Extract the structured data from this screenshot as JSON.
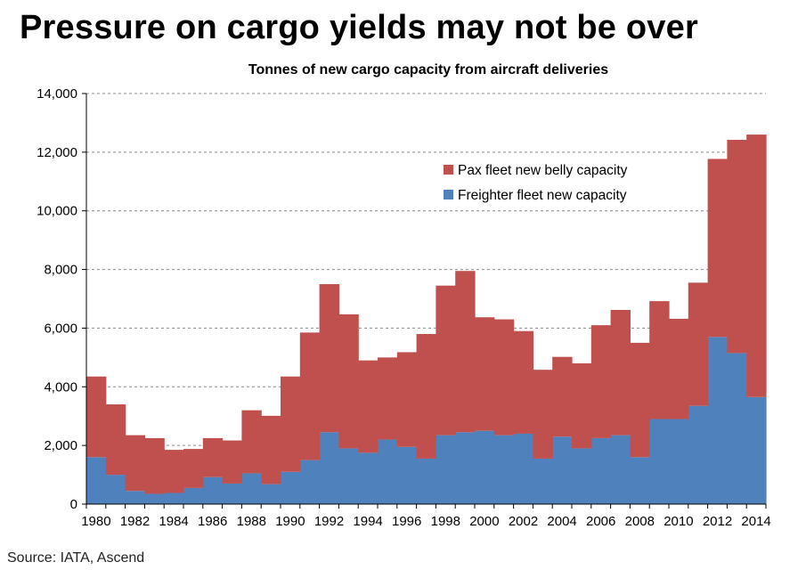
{
  "header": {
    "title": "Pressure on cargo yields may not be over"
  },
  "footer": {
    "source": "Source: IATA, Ascend"
  },
  "chart_data": {
    "type": "area",
    "stacked": true,
    "title": "Tonnes of new cargo capacity from aircraft deliveries",
    "xlabel": "",
    "ylabel": "",
    "ylim": [
      0,
      14000
    ],
    "yticks": [
      0,
      2000,
      4000,
      6000,
      8000,
      10000,
      12000,
      14000
    ],
    "ytick_labels": [
      "0",
      "2,000",
      "4,000",
      "6,000",
      "8,000",
      "10,000",
      "12,000",
      "14,000"
    ],
    "xtick_labels": [
      "1980",
      "1982",
      "1984",
      "1986",
      "1988",
      "1990",
      "1992",
      "1994",
      "1996",
      "1998",
      "2000",
      "2002",
      "2004",
      "2006",
      "2008",
      "2010",
      "2012",
      "2014"
    ],
    "grid": "horizontal-dashed",
    "legend_position": "upper-center-right",
    "x": [
      1980,
      1981,
      1982,
      1983,
      1984,
      1985,
      1986,
      1987,
      1988,
      1989,
      1990,
      1991,
      1992,
      1993,
      1994,
      1995,
      1996,
      1997,
      1998,
      1999,
      2000,
      2001,
      2002,
      2003,
      2004,
      2005,
      2006,
      2007,
      2008,
      2009,
      2010,
      2011,
      2012,
      2013,
      2014
    ],
    "series": [
      {
        "name": "Freighter fleet new capacity",
        "color": "#4F81BD",
        "values": [
          1600,
          1000,
          450,
          350,
          380,
          550,
          920,
          700,
          1050,
          680,
          1100,
          1500,
          2450,
          1900,
          1750,
          2200,
          1950,
          1550,
          2350,
          2450,
          2500,
          2350,
          2400,
          1550,
          2300,
          1900,
          2250,
          2350,
          1600,
          2900,
          2900,
          3350,
          5700,
          5150,
          3650
        ]
      },
      {
        "name": "Pax fleet new belly capacity",
        "color": "#C0504D",
        "values": [
          2750,
          2400,
          1900,
          1900,
          1470,
          1330,
          1330,
          1470,
          2150,
          2330,
          3250,
          4350,
          5050,
          4570,
          3150,
          2800,
          3230,
          4250,
          5100,
          5500,
          3870,
          3950,
          3500,
          3030,
          2720,
          2900,
          3850,
          4270,
          3900,
          4020,
          3420,
          4200,
          6070,
          7270,
          8950
        ]
      }
    ]
  }
}
